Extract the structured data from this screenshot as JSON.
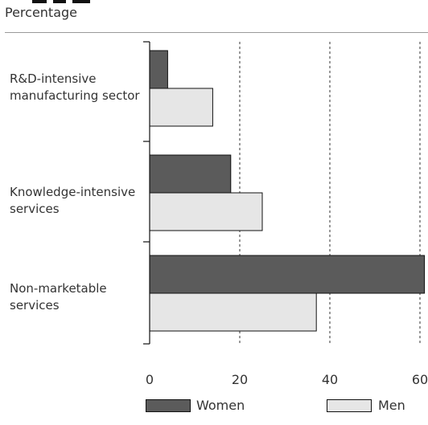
{
  "chart_data": {
    "type": "bar",
    "orientation": "horizontal",
    "ylabel": "Percentage",
    "categories": [
      "R&D-intensive\nmanufacturing sector",
      "Knowledge-intensive\nservices",
      "Non-marketable\nservices"
    ],
    "series": [
      {
        "name": "Women",
        "values": [
          4,
          18,
          61
        ],
        "color": "#5b5b5b"
      },
      {
        "name": "Men",
        "values": [
          14,
          25,
          37
        ],
        "color": "#e6e6e6"
      }
    ],
    "xticks": [
      "0",
      "20",
      "40",
      "60"
    ],
    "xlim": [
      0,
      60
    ],
    "grid": "vertical dashed",
    "legend": "bottom"
  }
}
